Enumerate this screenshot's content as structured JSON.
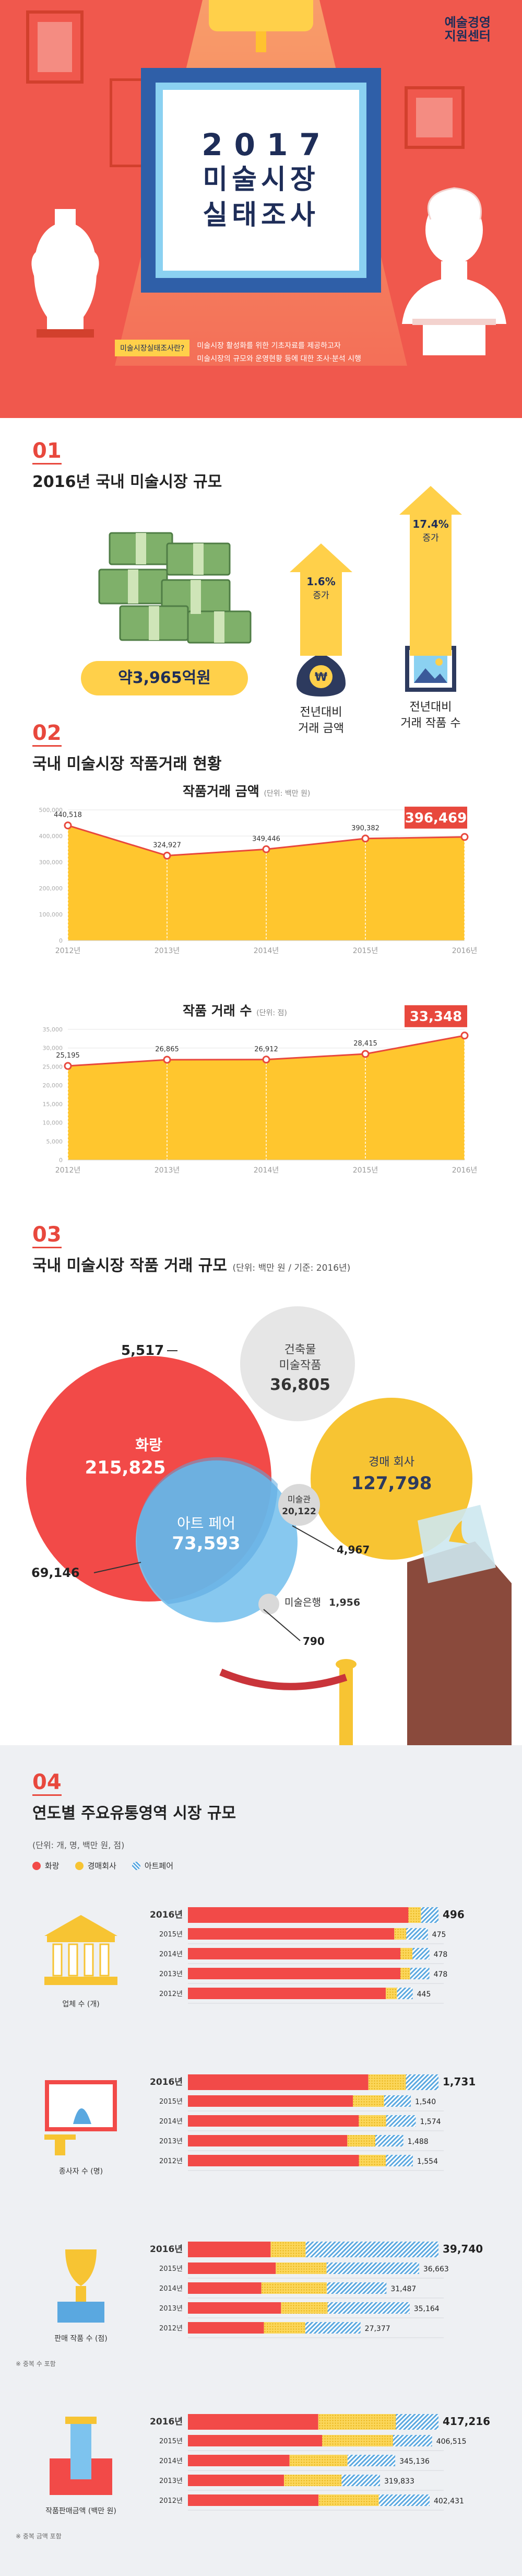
{
  "hero": {
    "year": "2017",
    "title_line1": "미술시장",
    "title_line2": "실태조사",
    "logo_line1": "예술경영",
    "logo_line2": "지원센터",
    "note_tag": "미술시장실태조사란?",
    "note_line1": "미술시장 활성화를 위한 기초자료를 제공하고자",
    "note_line2": "미술시장의 규모와 운영현황 등에 대한 조사·분석 시행"
  },
  "section1": {
    "number": "01",
    "title": "2016년 국내 미술시장 규모",
    "total_label": "약3,965억원",
    "indicators": [
      {
        "pct": "1.6%",
        "word": "증가",
        "label1": "전년대비",
        "label2": "거래 금액",
        "icon": "money-bag-icon"
      },
      {
        "pct": "17.4%",
        "word": "증가",
        "label1": "전년대비",
        "label2": "거래 작품 수",
        "icon": "picture-icon"
      }
    ]
  },
  "section2": {
    "number": "02",
    "title": "국내 미술시장 작품거래 현황",
    "amount_title": "작품거래 금액",
    "amount_unit": "(단위: 백만 원)",
    "count_title": "작품 거래 수",
    "count_unit": "(단위: 점)"
  },
  "section3": {
    "number": "03",
    "title": "국내 미술시장 작품 거래 규모",
    "unit": "(단위: 백만 원 / 기준: 2016년)",
    "circles": {
      "gallery_label": "화랑",
      "gallery_value": "215,825",
      "architecture_label1": "건축물",
      "architecture_label2": "미술작품",
      "architecture_value": "36,805",
      "auction_label": "경매 회사",
      "auction_value": "127,798",
      "artfair_label": "아트 페어",
      "artfair_value": "73,593",
      "museum_label": "미술관",
      "museum_value": "20,122",
      "artbank_label": "미술은행",
      "artbank_value": "1,956"
    },
    "callouts": {
      "c1": "5,517",
      "c2": "69,146",
      "c3": "4,967",
      "c4": "790"
    }
  },
  "section4": {
    "number": "04",
    "title": "연도별 주요유통영역 시장 규모",
    "unit": "(단위: 개, 명, 백만 원, 점)",
    "legend": [
      "화랑",
      "경매회사",
      "아트페어"
    ],
    "colors": {
      "gallery": "#f24a48",
      "auction": "#f7c433",
      "artfair": "#5aa8e0"
    },
    "blocks": [
      {
        "label": "업체 수 (개)",
        "note": "",
        "rows": [
          {
            "year": "2016년",
            "total": "496"
          },
          {
            "year": "2015년",
            "total": "475"
          },
          {
            "year": "2014년",
            "total": "478"
          },
          {
            "year": "2013년",
            "total": "478"
          },
          {
            "year": "2012년",
            "total": "445"
          }
        ]
      },
      {
        "label": "종사자 수 (명)",
        "note": "",
        "rows": [
          {
            "year": "2016년",
            "total": "1,731"
          },
          {
            "year": "2015년",
            "total": "1,540"
          },
          {
            "year": "2014년",
            "total": "1,574"
          },
          {
            "year": "2013년",
            "total": "1,488"
          },
          {
            "year": "2012년",
            "total": "1,554"
          }
        ]
      },
      {
        "label": "판매 작품 수 (점)",
        "note": "※ 중복 수 포함",
        "rows": [
          {
            "year": "2016년",
            "total": "39,740"
          },
          {
            "year": "2015년",
            "total": "36,663"
          },
          {
            "year": "2014년",
            "total": "31,487"
          },
          {
            "year": "2013년",
            "total": "35,164"
          },
          {
            "year": "2012년",
            "total": "27,377"
          }
        ]
      },
      {
        "label": "작품판매금액 (백만 원)",
        "note": "※ 중복 금액 포함",
        "rows": [
          {
            "year": "2016년",
            "total": "417,216"
          },
          {
            "year": "2015년",
            "total": "406,515"
          },
          {
            "year": "2014년",
            "total": "345,136"
          },
          {
            "year": "2013년",
            "total": "319,833"
          },
          {
            "year": "2012년",
            "total": "402,431"
          }
        ]
      }
    ]
  },
  "chart_data": [
    {
      "type": "area",
      "title": "작품거래 금액",
      "ylabel": "(단위: 백만 원)",
      "categories": [
        "2012년",
        "2013년",
        "2014년",
        "2015년",
        "2016년"
      ],
      "values": [
        440518,
        324927,
        349446,
        390382,
        396469
      ],
      "value_labels": [
        "440,518",
        "324,927",
        "349,446",
        "390,382",
        "396,469"
      ],
      "yticks": [
        "0",
        "100,000",
        "200,000",
        "300,000",
        "400,000",
        "500,000"
      ],
      "ylim": [
        0,
        500000
      ],
      "highlight_last": true
    },
    {
      "type": "area",
      "title": "작품 거래 수",
      "ylabel": "(단위: 점)",
      "categories": [
        "2012년",
        "2013년",
        "2014년",
        "2015년",
        "2016년"
      ],
      "values": [
        25195,
        26865,
        26912,
        28415,
        33348
      ],
      "value_labels": [
        "25,195",
        "26,865",
        "26,912",
        "28,415",
        "33,348"
      ],
      "yticks": [
        "0",
        "5,000",
        "10,000",
        "15,000",
        "20,000",
        "25,000",
        "30,000",
        "35,000"
      ],
      "ylim": [
        0,
        35000
      ],
      "highlight_last": true
    },
    {
      "type": "bar",
      "title": "업체 수 (개)",
      "categories": [
        "2016년",
        "2015년",
        "2014년",
        "2013년",
        "2012년"
      ],
      "totals": [
        496,
        475,
        478,
        478,
        445
      ],
      "series": [
        {
          "name": "화랑",
          "share": [
            0.88,
            0.86,
            0.88,
            0.88,
            0.88
          ]
        },
        {
          "name": "경매회사",
          "share": [
            0.05,
            0.05,
            0.05,
            0.04,
            0.05
          ]
        },
        {
          "name": "아트페어",
          "share": [
            0.07,
            0.09,
            0.07,
            0.08,
            0.07
          ]
        }
      ]
    },
    {
      "type": "bar",
      "title": "종사자 수 (명)",
      "categories": [
        "2016년",
        "2015년",
        "2014년",
        "2013년",
        "2012년"
      ],
      "totals": [
        1731,
        1540,
        1574,
        1488,
        1554
      ],
      "series": [
        {
          "name": "화랑",
          "share": [
            0.72,
            0.74,
            0.75,
            0.74,
            0.76
          ]
        },
        {
          "name": "경매회사",
          "share": [
            0.15,
            0.14,
            0.12,
            0.13,
            0.12
          ]
        },
        {
          "name": "아트페어",
          "share": [
            0.13,
            0.12,
            0.13,
            0.13,
            0.12
          ]
        }
      ]
    },
    {
      "type": "bar",
      "title": "판매 작품 수 (점)",
      "categories": [
        "2016년",
        "2015년",
        "2014년",
        "2013년",
        "2012년"
      ],
      "totals": [
        39740,
        36663,
        31487,
        35164,
        27377
      ],
      "series": [
        {
          "name": "화랑",
          "share": [
            0.33,
            0.38,
            0.37,
            0.42,
            0.44
          ]
        },
        {
          "name": "경매회사",
          "share": [
            0.14,
            0.22,
            0.33,
            0.21,
            0.24
          ]
        },
        {
          "name": "아트페어",
          "share": [
            0.53,
            0.4,
            0.3,
            0.37,
            0.32
          ]
        }
      ]
    },
    {
      "type": "bar",
      "title": "작품판매금액 (백만 원)",
      "categories": [
        "2016년",
        "2015년",
        "2014년",
        "2013년",
        "2012년"
      ],
      "totals": [
        417216,
        406515,
        345136,
        319833,
        402431
      ],
      "series": [
        {
          "name": "화랑",
          "share": [
            0.52,
            0.55,
            0.49,
            0.5,
            0.54
          ]
        },
        {
          "name": "경매회사",
          "share": [
            0.31,
            0.29,
            0.28,
            0.3,
            0.25
          ]
        },
        {
          "name": "아트페어",
          "share": [
            0.17,
            0.16,
            0.23,
            0.2,
            0.21
          ]
        }
      ]
    }
  ]
}
